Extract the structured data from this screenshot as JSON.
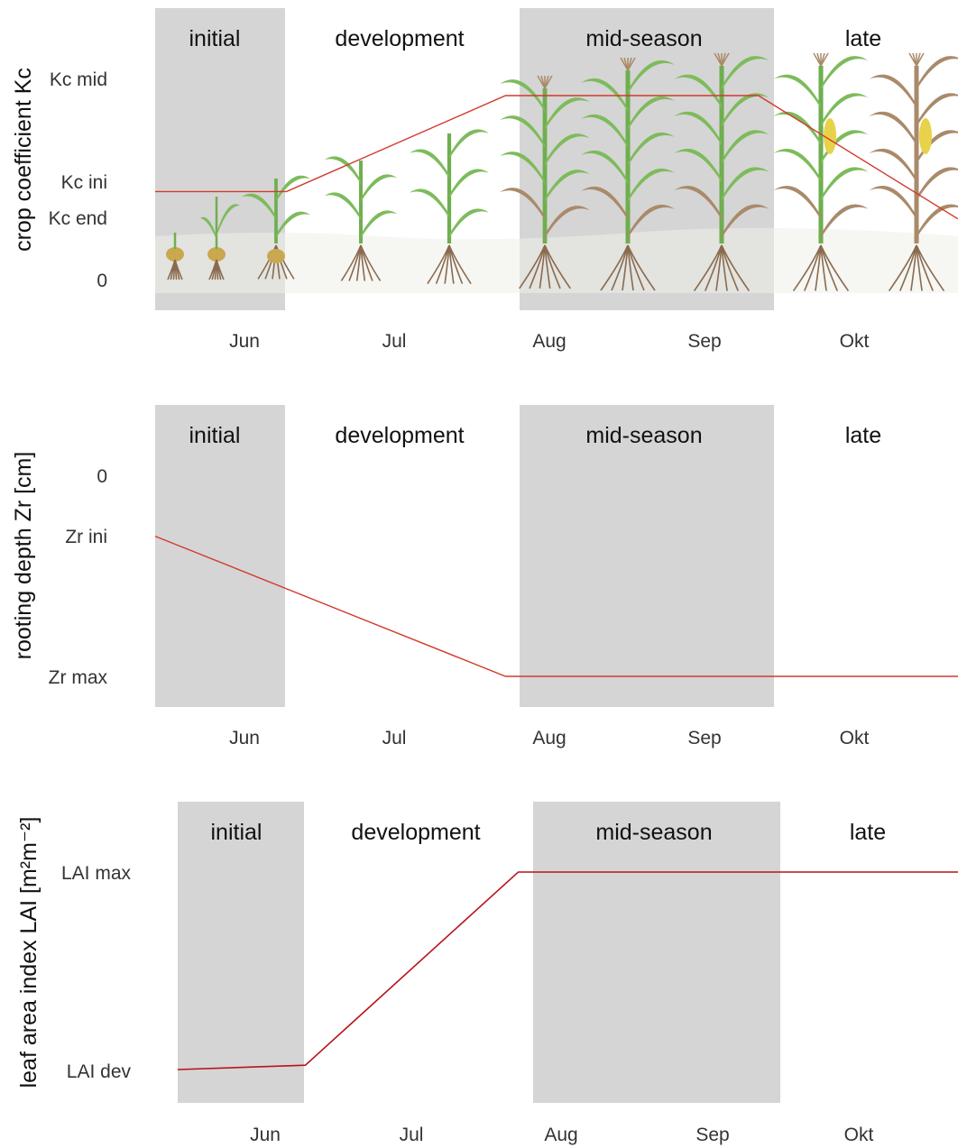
{
  "colors": {
    "shade": "#d5d5d5",
    "line": "#d23a2d",
    "line_lai": "#b8141a",
    "stem_green": "#6fae4f",
    "leaf_green": "#7dbb5b",
    "dry_brown": "#a98a6a",
    "root_brown": "#8a6b4f",
    "seed": "#c9a84f",
    "cob": "#e8d24a"
  },
  "chart_data": [
    {
      "type": "line",
      "title": "",
      "xlabel": "",
      "ylabel": "crop coefficient Kc",
      "stages": [
        "initial",
        "development",
        "mid-season",
        "late"
      ],
      "shaded_stages": [
        "initial",
        "mid-season"
      ],
      "months": [
        "Jun",
        "Jul",
        "Aug",
        "Sep",
        "Okt"
      ],
      "y_ticks": [
        "Kc mid",
        "Kc ini",
        "Kc end",
        "0"
      ],
      "x_range": [
        "2000-05-15",
        "2000-10-27"
      ],
      "stage_bounds": [
        "2000-05-15",
        "2000-06-11",
        "2000-07-27",
        "2000-09-16",
        "2000-10-27"
      ],
      "y_range": [
        0,
        1.2
      ],
      "series": [
        {
          "x": [
            "2000-05-15",
            "2000-06-11",
            "2000-07-26",
            "2000-09-16",
            "2000-10-27"
          ],
          "y": [
            0.54,
            0.54,
            1.1,
            1.1,
            0.38
          ]
        }
      ],
      "plant_icons": [
        "seed-sprout-icon",
        "seed-sprout-icon",
        "seedling-icon",
        "young-maize-icon",
        "young-maize-icon",
        "growing-maize-icon",
        "tall-maize-icon",
        "tall-maize-icon",
        "tall-maize-icon",
        "ripening-maize-icon",
        "dry-maize-icon"
      ],
      "grid": false
    },
    {
      "type": "line",
      "title": "",
      "xlabel": "",
      "ylabel": "rooting depth Zr [cm]",
      "stages": [
        "initial",
        "development",
        "mid-season",
        "late"
      ],
      "shaded_stages": [
        "initial",
        "mid-season"
      ],
      "months": [
        "Jun",
        "Jul",
        "Aug",
        "Sep",
        "Okt"
      ],
      "y_ticks": [
        "0",
        "Zr ini",
        "Zr max"
      ],
      "y_inverted": true,
      "x_range": [
        "2000-05-15",
        "2000-10-27"
      ],
      "stage_bounds": [
        "2000-05-15",
        "2000-06-11",
        "2000-07-27",
        "2000-09-16",
        "2000-10-27"
      ],
      "y_range": [
        0,
        1
      ],
      "series": [
        {
          "x": [
            "2000-05-15",
            "2000-07-26",
            "2000-10-27"
          ],
          "y": [
            0.3,
            1.0,
            1.0
          ]
        }
      ],
      "grid": false
    },
    {
      "type": "line",
      "title": "",
      "xlabel": "",
      "ylabel": "leaf area index LAI [m²m⁻²]",
      "stages": [
        "initial",
        "development",
        "mid-season",
        "late"
      ],
      "shaded_stages": [
        "initial",
        "mid-season"
      ],
      "months": [
        "Jun",
        "Jul",
        "Aug",
        "Sep",
        "Okt"
      ],
      "y_ticks": [
        "LAI max",
        "LAI dev"
      ],
      "x_range": [
        "2000-05-15",
        "2000-10-27"
      ],
      "stage_bounds": [
        "2000-05-15",
        "2000-06-11",
        "2000-07-27",
        "2000-09-16",
        "2000-10-27"
      ],
      "y_range": [
        0,
        1
      ],
      "series": [
        {
          "x": [
            "2000-05-15",
            "2000-06-11",
            "2000-07-26",
            "2000-10-27"
          ],
          "y": [
            0.08,
            0.1,
            1.0,
            1.0
          ]
        }
      ],
      "grid": false
    }
  ]
}
